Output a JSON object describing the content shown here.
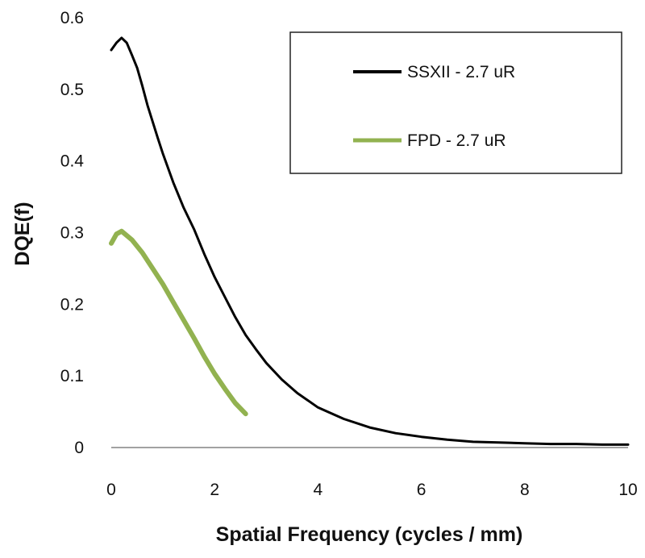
{
  "chart_data": {
    "type": "line",
    "xlabel": "Spatial Frequency (cycles / mm)",
    "ylabel": "DQE(f)",
    "xlim": [
      0,
      10
    ],
    "ylim": [
      0,
      0.6
    ],
    "xticks": [
      0,
      2,
      4,
      6,
      8,
      10
    ],
    "yticks": [
      0,
      0.1,
      0.2,
      0.3,
      0.4,
      0.5,
      0.6
    ],
    "ytick_labels": [
      "0",
      "0.1",
      "0.2",
      "0.3",
      "0.4",
      "0.5",
      "0.6"
    ],
    "grid": false,
    "legend_position": "top-right",
    "series": [
      {
        "name": "SSXII - 2.7 uR",
        "color": "#000000",
        "x": [
          0,
          0.1,
          0.2,
          0.3,
          0.4,
          0.5,
          0.6,
          0.7,
          0.8,
          0.9,
          1.0,
          1.2,
          1.4,
          1.6,
          1.8,
          2.0,
          2.2,
          2.4,
          2.6,
          2.8,
          3.0,
          3.3,
          3.6,
          4.0,
          4.5,
          5.0,
          5.5,
          6.0,
          6.5,
          7.0,
          7.5,
          8.0,
          8.5,
          9.0,
          9.5,
          10.0
        ],
        "y": [
          0.555,
          0.565,
          0.572,
          0.565,
          0.548,
          0.53,
          0.505,
          0.478,
          0.455,
          0.432,
          0.41,
          0.37,
          0.335,
          0.305,
          0.27,
          0.238,
          0.21,
          0.182,
          0.157,
          0.137,
          0.118,
          0.095,
          0.076,
          0.056,
          0.04,
          0.028,
          0.02,
          0.015,
          0.011,
          0.008,
          0.007,
          0.006,
          0.005,
          0.005,
          0.004,
          0.004
        ]
      },
      {
        "name": "FPD - 2.7 uR",
        "color": "#92b250",
        "x": [
          0,
          0.1,
          0.2,
          0.3,
          0.4,
          0.6,
          0.8,
          1.0,
          1.2,
          1.4,
          1.6,
          1.8,
          2.0,
          2.2,
          2.4,
          2.6
        ],
        "y": [
          0.285,
          0.298,
          0.302,
          0.296,
          0.29,
          0.272,
          0.25,
          0.228,
          0.203,
          0.178,
          0.153,
          0.127,
          0.103,
          0.082,
          0.062,
          0.047
        ]
      }
    ]
  }
}
